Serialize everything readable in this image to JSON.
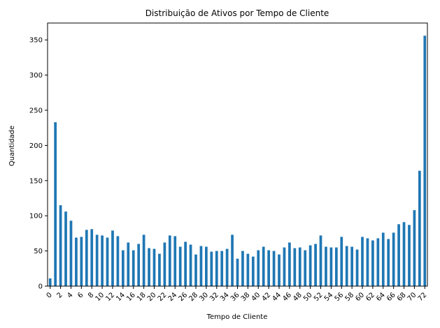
{
  "chart_data": {
    "type": "bar",
    "title": "Distribuição de Ativos por Tempo de Cliente",
    "xlabel": "Tempo de Cliente",
    "ylabel": "Quantidade",
    "ylim": [
      0,
      374
    ],
    "yticks": [
      0,
      50,
      100,
      150,
      200,
      250,
      300,
      350
    ],
    "categories": [
      0,
      1,
      2,
      3,
      4,
      5,
      6,
      7,
      8,
      9,
      10,
      11,
      12,
      13,
      14,
      15,
      16,
      17,
      18,
      19,
      20,
      21,
      22,
      23,
      24,
      25,
      26,
      27,
      28,
      29,
      30,
      31,
      32,
      33,
      34,
      35,
      36,
      37,
      38,
      39,
      40,
      41,
      42,
      43,
      44,
      45,
      46,
      47,
      48,
      49,
      50,
      51,
      52,
      53,
      54,
      55,
      56,
      57,
      58,
      59,
      60,
      61,
      62,
      63,
      64,
      65,
      66,
      67,
      68,
      69,
      70,
      71,
      72
    ],
    "xtick_labels_shown": [
      0,
      2,
      4,
      6,
      8,
      10,
      12,
      14,
      16,
      18,
      20,
      22,
      24,
      26,
      28,
      30,
      32,
      34,
      36,
      38,
      40,
      42,
      44,
      46,
      48,
      50,
      52,
      54,
      56,
      58,
      60,
      62,
      64,
      66,
      68,
      70,
      72
    ],
    "values": [
      11,
      233,
      115,
      106,
      93,
      69,
      70,
      80,
      81,
      73,
      72,
      69,
      79,
      71,
      51,
      62,
      51,
      60,
      73,
      54,
      53,
      46,
      62,
      72,
      71,
      56,
      63,
      59,
      45,
      57,
      56,
      49,
      50,
      50,
      53,
      73,
      39,
      50,
      46,
      42,
      51,
      56,
      51,
      50,
      45,
      55,
      62,
      54,
      55,
      51,
      58,
      60,
      72,
      56,
      55,
      55,
      70,
      57,
      56,
      52,
      70,
      68,
      65,
      68,
      76,
      67,
      76,
      88,
      91,
      87,
      108,
      164,
      356
    ],
    "color": "#1f77b4",
    "grid": false,
    "legend": "none"
  }
}
